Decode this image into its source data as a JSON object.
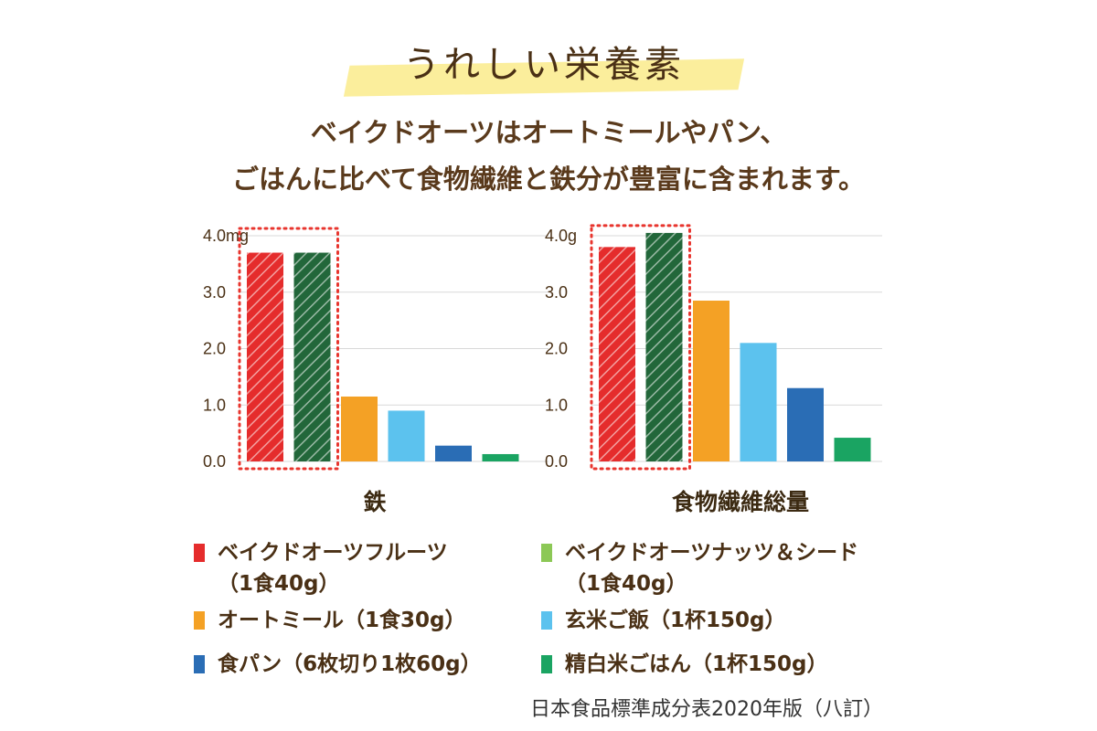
{
  "header": {
    "title": "うれしい栄養素",
    "line1": "ベイクドオーツはオートミールやパン、",
    "line2": "ごはんに比べて食物繊維と鉄分が豊富に含まれます。"
  },
  "colors": {
    "red": "#e52c2c",
    "green": "#22673a",
    "orange": "#f4a125",
    "lightblue": "#5cc2ee",
    "blue": "#2a6db5",
    "lightgreen": "#8cc856",
    "emerald": "#1aa462",
    "highlight": "#fbee9c",
    "dotted": "#e8352e"
  },
  "chart_data": [
    {
      "type": "bar",
      "xlabel": "鉄",
      "ytick_labels": [
        "4.0mg",
        "3.0",
        "2.0",
        "1.0",
        "0.0"
      ],
      "ylim": [
        0,
        4.0
      ],
      "grid": true,
      "categories": [
        "ベイクドオーツフルーツ",
        "ベイクドオーツナッツ＆シード",
        "オートミール",
        "玄米ご飯",
        "食パン",
        "精白米ごはん"
      ],
      "values": [
        3.7,
        3.7,
        1.15,
        0.9,
        0.28,
        0.13
      ],
      "colors": [
        "red",
        "green",
        "orange",
        "lightblue",
        "blue",
        "emerald"
      ],
      "hatched": [
        true,
        true,
        false,
        false,
        false,
        false
      ]
    },
    {
      "type": "bar",
      "xlabel": "食物繊維総量",
      "ytick_labels": [
        "4.0g",
        "3.0",
        "2.0",
        "1.0",
        "0.0"
      ],
      "ylim": [
        0,
        4.0
      ],
      "grid": true,
      "categories": [
        "ベイクドオーツフルーツ",
        "ベイクドオーツナッツ＆シード",
        "オートミール",
        "玄米ご飯",
        "食パン",
        "精白米ごはん"
      ],
      "values": [
        3.8,
        4.05,
        2.85,
        2.1,
        1.3,
        0.42
      ],
      "colors": [
        "red",
        "green",
        "orange",
        "lightblue",
        "blue",
        "emerald"
      ],
      "hatched": [
        true,
        true,
        false,
        false,
        false,
        false
      ]
    }
  ],
  "legend": [
    {
      "label": "ベイクドオーツフルーツ",
      "sub": "（1食40g）",
      "color": "red"
    },
    {
      "label": "ベイクドオーツナッツ＆シード",
      "sub": "（1食40g）",
      "color": "lightgreen"
    },
    {
      "label": "オートミール（1食30g）",
      "sub": "",
      "color": "orange"
    },
    {
      "label": "玄米ご飯（1杯150g）",
      "sub": "",
      "color": "lightblue"
    },
    {
      "label": "食パン（6枚切り1枚60g）",
      "sub": "",
      "color": "blue"
    },
    {
      "label": "精白米ごはん（1杯150g）",
      "sub": "",
      "color": "emerald"
    }
  ],
  "source": "日本食品標準成分表2020年版（八訂）"
}
